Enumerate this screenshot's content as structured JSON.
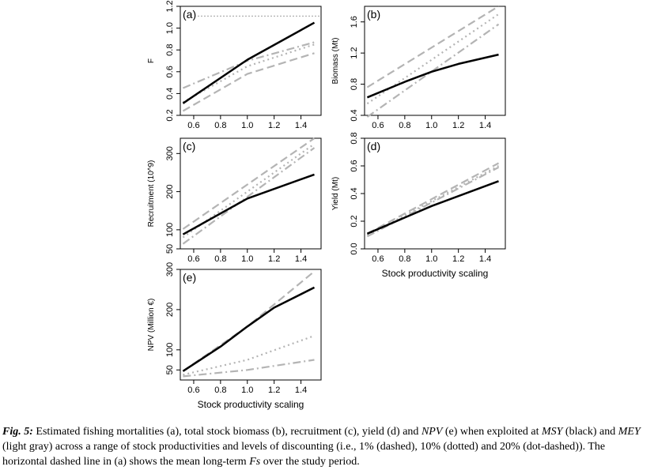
{
  "caption": {
    "lead": "Fig. 5:",
    "t1": " Estimated fishing mortalities (a), total stock biomass (b), recruitment (c), yield (d) and ",
    "i1": "NPV",
    "t2": " (e) when exploited at ",
    "i2": "MSY",
    "t3": " (black) and ",
    "i3": "MEY",
    "t4": " (light gray) across a range of stock productivities and levels of discounting (i.e., 1% (dashed), 10% (dotted) and 20% (dot-dashed)). The horizontal dashed line in (a) shows the mean long-term ",
    "i4": "Fs",
    "t5": " over the study period."
  },
  "colors": {
    "msy": "#000000",
    "mey": "#b4b4b4",
    "reference": "#b4b4b4"
  },
  "chart_data": [
    {
      "type": "line",
      "panel": "(a)",
      "ylabel": "F",
      "xlabel": "",
      "xlim": [
        0.5,
        1.55
      ],
      "ylim": [
        0.2,
        1.2
      ],
      "xticks": [
        "0.6",
        "0.8",
        "1.0",
        "1.2",
        "1.4"
      ],
      "yticks": [
        "0.2",
        "0.4",
        "0.6",
        "0.8",
        "1.0",
        "1.2"
      ],
      "reference_line": {
        "y": 1.11,
        "style": "dotted"
      },
      "series": [
        {
          "group": "MSY",
          "style": "solid",
          "x": [
            0.52,
            1.0,
            1.5
          ],
          "y": [
            0.31,
            0.71,
            1.05
          ]
        },
        {
          "group": "MEY",
          "style": "dashed",
          "x": [
            0.52,
            1.0,
            1.5
          ],
          "y": [
            0.24,
            0.58,
            0.77
          ]
        },
        {
          "group": "MEY",
          "style": "dotted",
          "x": [
            0.52,
            1.0,
            1.5
          ],
          "y": [
            0.32,
            0.65,
            0.85
          ]
        },
        {
          "group": "MEY",
          "style": "dot-dashed",
          "x": [
            0.52,
            1.0,
            1.5
          ],
          "y": [
            0.45,
            0.7,
            0.87
          ]
        }
      ]
    },
    {
      "type": "line",
      "panel": "(b)",
      "ylabel": "Biomass (Mt)",
      "xlabel": "",
      "xlim": [
        0.5,
        1.55
      ],
      "ylim": [
        0.4,
        1.8
      ],
      "xticks": [
        "0.6",
        "0.8",
        "1.0",
        "1.2",
        "1.4"
      ],
      "yticks": [
        "0.4",
        "0.8",
        "1.2",
        "1.6"
      ],
      "series": [
        {
          "group": "MSY",
          "style": "solid",
          "x": [
            0.52,
            0.8,
            1.0,
            1.2,
            1.5
          ],
          "y": [
            0.63,
            0.83,
            0.96,
            1.06,
            1.18
          ]
        },
        {
          "group": "MEY",
          "style": "dashed",
          "x": [
            0.52,
            1.5
          ],
          "y": [
            0.76,
            1.8
          ]
        },
        {
          "group": "MEY",
          "style": "dotted",
          "x": [
            0.52,
            1.5
          ],
          "y": [
            0.55,
            1.7
          ]
        },
        {
          "group": "MEY",
          "style": "dot-dashed",
          "x": [
            0.52,
            1.5
          ],
          "y": [
            0.38,
            1.57
          ]
        }
      ]
    },
    {
      "type": "line",
      "panel": "(c)",
      "ylabel": "Recruitment (10^9)",
      "xlabel": "",
      "xlim": [
        0.5,
        1.55
      ],
      "ylim": [
        50,
        340
      ],
      "xticks": [
        "0.6",
        "0.8",
        "1.0",
        "1.2",
        "1.4"
      ],
      "yticks": [
        "50",
        "100",
        "200",
        "300"
      ],
      "series": [
        {
          "group": "MSY",
          "style": "solid",
          "x": [
            0.52,
            1.0,
            1.5
          ],
          "y": [
            88,
            182,
            245
          ]
        },
        {
          "group": "MEY",
          "style": "dashed",
          "x": [
            0.52,
            1.5
          ],
          "y": [
            102,
            340
          ]
        },
        {
          "group": "MEY",
          "style": "dotted",
          "x": [
            0.52,
            1.5
          ],
          "y": [
            80,
            325
          ]
        },
        {
          "group": "MEY",
          "style": "dot-dashed",
          "x": [
            0.52,
            1.5
          ],
          "y": [
            63,
            315
          ]
        }
      ]
    },
    {
      "type": "line",
      "panel": "(d)",
      "ylabel": "Yield (Mt)",
      "xlabel": "Stock productivity scaling",
      "xlim": [
        0.5,
        1.55
      ],
      "ylim": [
        0.0,
        0.8
      ],
      "xticks": [
        "0.6",
        "0.8",
        "1.0",
        "1.2",
        "1.4"
      ],
      "yticks": [
        "0.0",
        "0.2",
        "0.4",
        "0.6",
        "0.8"
      ],
      "series": [
        {
          "group": "MSY",
          "style": "solid",
          "x": [
            0.52,
            1.0,
            1.5
          ],
          "y": [
            0.11,
            0.31,
            0.49
          ]
        },
        {
          "group": "MEY",
          "style": "dashed",
          "x": [
            0.52,
            1.5
          ],
          "y": [
            0.11,
            0.62
          ]
        },
        {
          "group": "MEY",
          "style": "dotted",
          "x": [
            0.52,
            1.5
          ],
          "y": [
            0.1,
            0.6
          ]
        },
        {
          "group": "MEY",
          "style": "dot-dashed",
          "x": [
            0.52,
            1.5
          ],
          "y": [
            0.09,
            0.59
          ]
        }
      ]
    },
    {
      "type": "line",
      "panel": "(e)",
      "ylabel": "NPV (Million €)",
      "xlabel": "Stock productivity scaling",
      "xlim": [
        0.5,
        1.55
      ],
      "ylim": [
        25,
        300
      ],
      "xticks": [
        "0.6",
        "0.8",
        "1.0",
        "1.2",
        "1.4"
      ],
      "yticks": [
        "50",
        "100",
        "200",
        "300"
      ],
      "series": [
        {
          "group": "MSY",
          "style": "solid",
          "x": [
            0.52,
            0.8,
            1.0,
            1.2,
            1.5
          ],
          "y": [
            47,
            108,
            158,
            205,
            255
          ]
        },
        {
          "group": "MEY",
          "style": "dashed",
          "x": [
            0.52,
            1.0,
            1.5
          ],
          "y": [
            47,
            158,
            295
          ]
        },
        {
          "group": "MEY",
          "style": "dotted",
          "x": [
            0.52,
            1.0,
            1.5
          ],
          "y": [
            38,
            75,
            135
          ]
        },
        {
          "group": "MEY",
          "style": "dot-dashed",
          "x": [
            0.52,
            1.0,
            1.5
          ],
          "y": [
            34,
            50,
            75
          ]
        }
      ]
    }
  ]
}
